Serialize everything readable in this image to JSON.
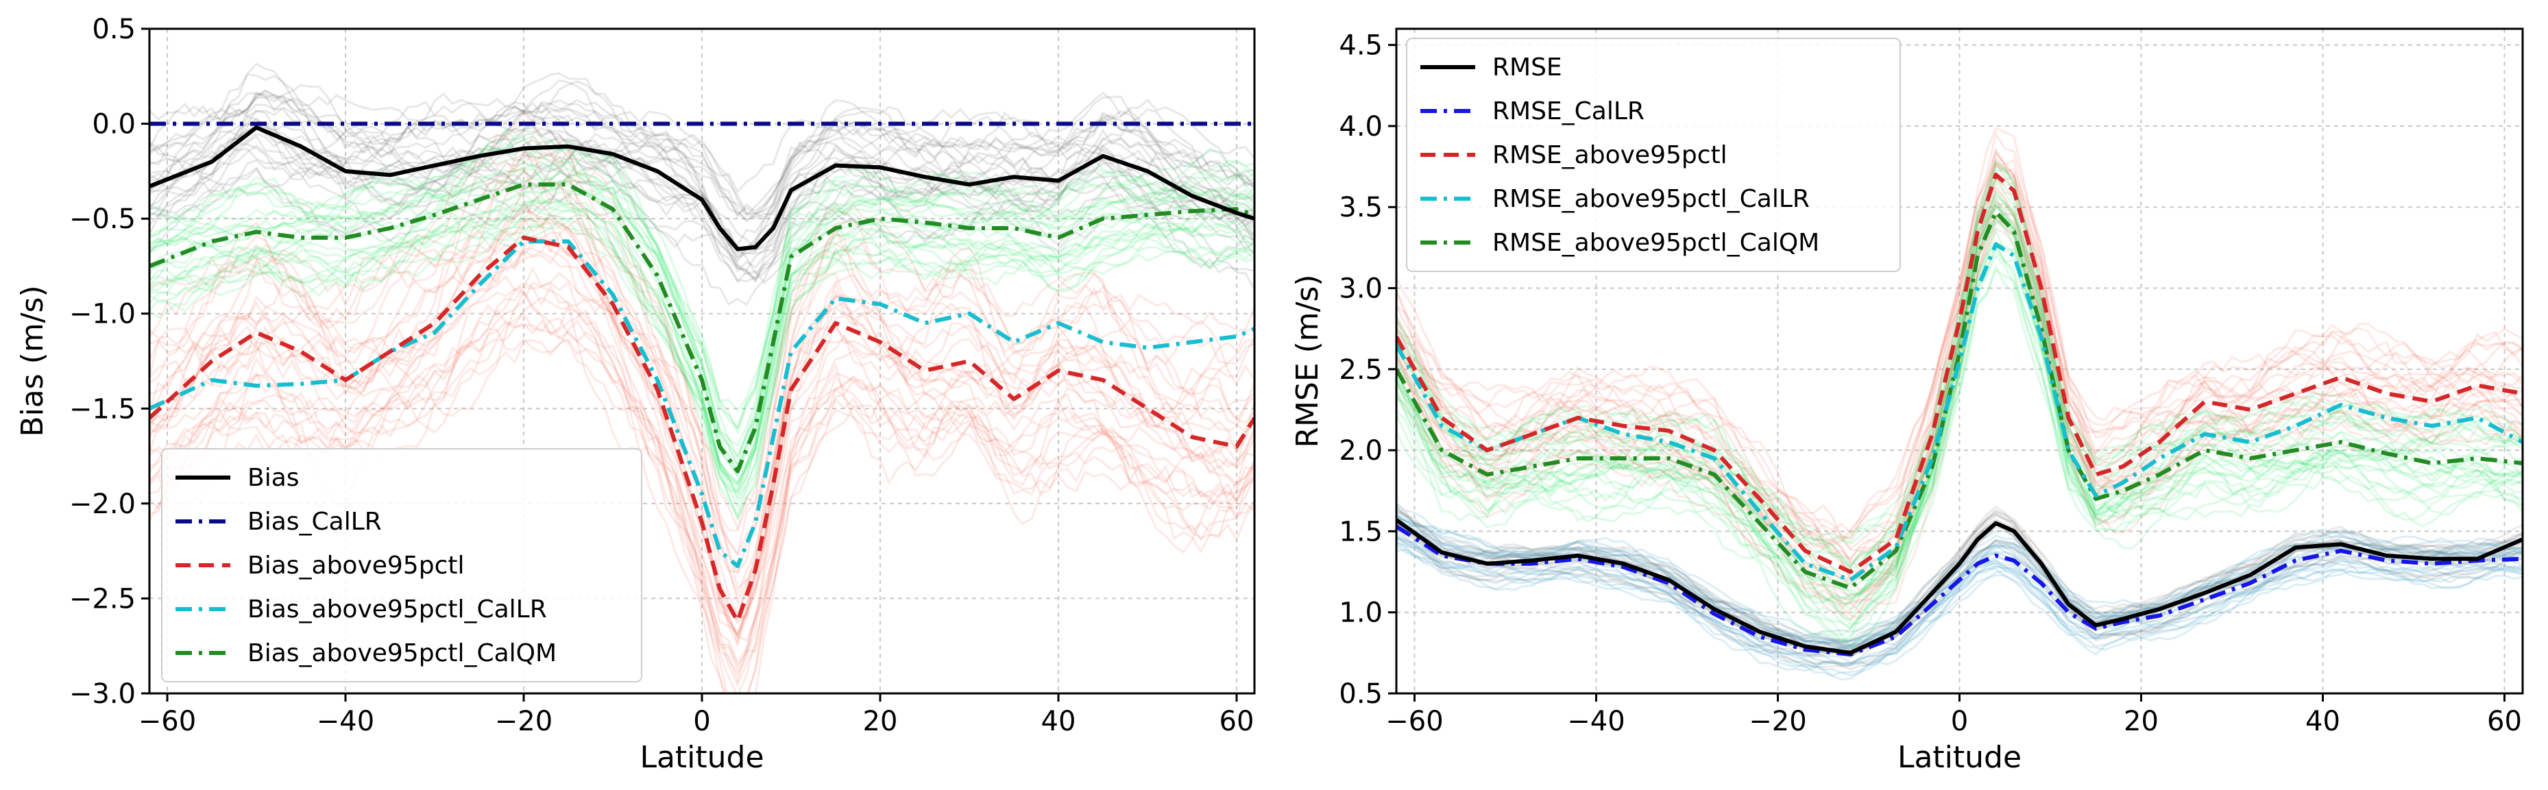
{
  "chart_data": [
    {
      "type": "line",
      "xlabel": "Latitude",
      "ylabel": "Bias (m/s)",
      "xlim": [
        -62,
        62
      ],
      "ylim": [
        -3.0,
        0.5
      ],
      "xticks": [
        -60,
        -40,
        -20,
        0,
        20,
        40,
        60
      ],
      "xtick_labels": [
        "−60",
        "−40",
        "−20",
        "0",
        "20",
        "40",
        "60"
      ],
      "yticks": [
        0.5,
        0.0,
        -0.5,
        -1.0,
        -1.5,
        -2.0,
        -2.5,
        -3.0
      ],
      "ytick_labels": [
        "0.5",
        "0.0",
        "−0.5",
        "−1.0",
        "−1.5",
        "−2.0",
        "−2.5",
        "−3.0"
      ],
      "grid": true,
      "legend_position": "lower-left",
      "x": [
        -62,
        -55,
        -50,
        -45,
        -40,
        -35,
        -30,
        -25,
        -20,
        -15,
        -10,
        -5,
        0,
        2,
        4,
        6,
        8,
        10,
        15,
        20,
        25,
        30,
        35,
        40,
        45,
        50,
        55,
        60,
        62
      ],
      "series": [
        {
          "name": "Bias",
          "color": "#000000",
          "dash": "solid",
          "values": [
            -0.33,
            -0.2,
            -0.02,
            -0.12,
            -0.25,
            -0.27,
            -0.22,
            -0.17,
            -0.13,
            -0.12,
            -0.16,
            -0.25,
            -0.4,
            -0.55,
            -0.66,
            -0.65,
            -0.55,
            -0.35,
            -0.22,
            -0.23,
            -0.28,
            -0.32,
            -0.28,
            -0.3,
            -0.17,
            -0.25,
            -0.38,
            -0.47,
            -0.5
          ]
        },
        {
          "name": "Bias_CalLR",
          "color": "#0a0a8c",
          "dash": "dashdot",
          "values": [
            0.0,
            0.0,
            0.0,
            0.0,
            0.0,
            0.0,
            0.0,
            0.0,
            0.0,
            0.0,
            0.0,
            0.0,
            0.0,
            0.0,
            0.0,
            0.0,
            0.0,
            0.0,
            0.0,
            0.0,
            0.0,
            0.0,
            0.0,
            0.0,
            0.0,
            0.0,
            0.0,
            0.0,
            0.0
          ]
        },
        {
          "name": "Bias_above95pctl",
          "color": "#d62728",
          "dash": "dashed",
          "values": [
            -1.55,
            -1.25,
            -1.1,
            -1.2,
            -1.35,
            -1.2,
            -1.05,
            -0.8,
            -0.6,
            -0.65,
            -0.95,
            -1.4,
            -2.1,
            -2.45,
            -2.62,
            -2.35,
            -1.9,
            -1.4,
            -1.05,
            -1.15,
            -1.3,
            -1.25,
            -1.45,
            -1.3,
            -1.35,
            -1.5,
            -1.65,
            -1.7,
            -1.55
          ]
        },
        {
          "name": "Bias_above95pctl_CalLR",
          "color": "#17becf",
          "dash": "dashdot",
          "values": [
            -1.5,
            -1.35,
            -1.38,
            -1.37,
            -1.35,
            -1.2,
            -1.1,
            -0.85,
            -0.62,
            -0.62,
            -0.9,
            -1.35,
            -1.95,
            -2.25,
            -2.33,
            -2.1,
            -1.65,
            -1.2,
            -0.92,
            -0.95,
            -1.05,
            -1.0,
            -1.15,
            -1.05,
            -1.15,
            -1.18,
            -1.15,
            -1.12,
            -1.08
          ]
        },
        {
          "name": "Bias_above95pctl_CalQM",
          "color": "#228b22",
          "dash": "dashdot",
          "values": [
            -0.75,
            -0.62,
            -0.57,
            -0.6,
            -0.6,
            -0.55,
            -0.48,
            -0.4,
            -0.32,
            -0.32,
            -0.45,
            -0.8,
            -1.35,
            -1.7,
            -1.83,
            -1.6,
            -1.15,
            -0.7,
            -0.55,
            -0.5,
            -0.52,
            -0.55,
            -0.55,
            -0.6,
            -0.5,
            -0.48,
            -0.46,
            -0.45,
            -0.48
          ]
        }
      ]
    },
    {
      "type": "line",
      "xlabel": "Latitude",
      "ylabel": "RMSE (m/s)",
      "xlim": [
        -62,
        62
      ],
      "ylim": [
        0.5,
        4.6
      ],
      "xticks": [
        -60,
        -40,
        -20,
        0,
        20,
        40,
        60
      ],
      "xtick_labels": [
        "−60",
        "−40",
        "−20",
        "0",
        "20",
        "40",
        "60"
      ],
      "yticks": [
        0.5,
        1.0,
        1.5,
        2.0,
        2.5,
        3.0,
        3.5,
        4.0,
        4.5
      ],
      "ytick_labels": [
        "0.5",
        "1.0",
        "1.5",
        "2.0",
        "2.5",
        "3.0",
        "3.5",
        "4.0",
        "4.5"
      ],
      "grid": true,
      "legend_position": "upper-left",
      "x": [
        -62,
        -57,
        -52,
        -47,
        -42,
        -37,
        -32,
        -27,
        -22,
        -17,
        -12,
        -7,
        -3,
        0,
        2,
        4,
        6,
        9,
        12,
        15,
        18,
        22,
        27,
        32,
        37,
        42,
        47,
        52,
        57,
        62
      ],
      "series": [
        {
          "name": "RMSE",
          "color": "#000000",
          "dash": "solid",
          "values": [
            1.57,
            1.37,
            1.3,
            1.32,
            1.35,
            1.3,
            1.2,
            1.02,
            0.88,
            0.79,
            0.75,
            0.88,
            1.12,
            1.3,
            1.45,
            1.55,
            1.5,
            1.3,
            1.05,
            0.92,
            0.96,
            1.02,
            1.12,
            1.23,
            1.4,
            1.42,
            1.35,
            1.33,
            1.33,
            1.45
          ]
        },
        {
          "name": "RMSE_CalLR",
          "color": "#1515e8",
          "dash": "dashdot",
          "values": [
            1.53,
            1.35,
            1.3,
            1.3,
            1.33,
            1.28,
            1.18,
            0.99,
            0.85,
            0.77,
            0.74,
            0.85,
            1.05,
            1.2,
            1.3,
            1.35,
            1.32,
            1.18,
            1.0,
            0.9,
            0.94,
            0.98,
            1.08,
            1.18,
            1.32,
            1.38,
            1.32,
            1.3,
            1.32,
            1.33
          ]
        },
        {
          "name": "RMSE_above95pctl",
          "color": "#d62728",
          "dash": "dashed",
          "values": [
            2.7,
            2.2,
            2.0,
            2.1,
            2.2,
            2.15,
            2.12,
            2.0,
            1.7,
            1.38,
            1.25,
            1.45,
            2.1,
            2.8,
            3.35,
            3.7,
            3.6,
            3.0,
            2.2,
            1.85,
            1.9,
            2.05,
            2.3,
            2.25,
            2.35,
            2.45,
            2.35,
            2.3,
            2.4,
            2.35
          ]
        },
        {
          "name": "RMSE_above95pctl_CalLR",
          "color": "#17becf",
          "dash": "dashdot",
          "values": [
            2.65,
            2.15,
            2.0,
            2.1,
            2.2,
            2.1,
            2.05,
            1.95,
            1.62,
            1.3,
            1.2,
            1.4,
            1.95,
            2.55,
            3.0,
            3.27,
            3.2,
            2.7,
            2.0,
            1.72,
            1.8,
            1.95,
            2.1,
            2.05,
            2.15,
            2.28,
            2.2,
            2.15,
            2.2,
            2.05
          ]
        },
        {
          "name": "RMSE_above95pctl_CalQM",
          "color": "#228b22",
          "dash": "dashdot",
          "values": [
            2.5,
            2.0,
            1.85,
            1.9,
            1.95,
            1.95,
            1.95,
            1.85,
            1.55,
            1.25,
            1.15,
            1.38,
            1.9,
            2.6,
            3.2,
            3.47,
            3.35,
            2.75,
            2.0,
            1.7,
            1.75,
            1.85,
            2.0,
            1.95,
            2.0,
            2.05,
            1.98,
            1.92,
            1.95,
            1.92
          ]
        }
      ]
    }
  ]
}
